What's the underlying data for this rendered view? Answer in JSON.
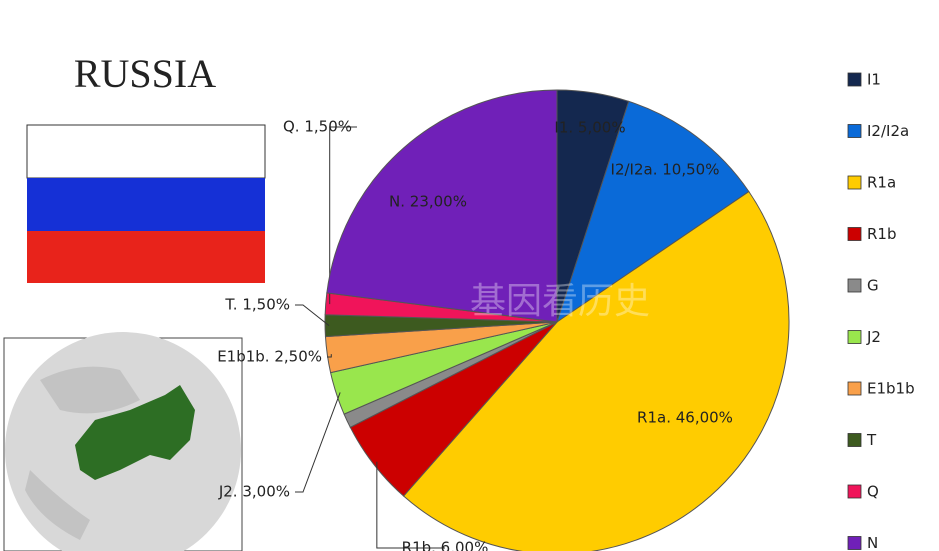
{
  "chart_data": {
    "type": "pie",
    "title": "RUSSIA",
    "watermark": "基因看历史",
    "categories": [
      "I1",
      "I2/I2a",
      "R1a",
      "R1b",
      "G",
      "J2",
      "E1b1b",
      "T",
      "Q",
      "N"
    ],
    "values": [
      5.0,
      10.5,
      46.0,
      6.0,
      1.0,
      3.0,
      2.5,
      1.5,
      1.5,
      23.0
    ],
    "value_labels": [
      "I1. 5,00%",
      "I2/I2a. 10,50%",
      "R1a. 46,00%",
      "R1b. 6,00%",
      null,
      "J2. 3,00%",
      "E1b1b. 2,50%",
      "T. 1,50%",
      "Q. 1,50%",
      "N. 23,00%"
    ],
    "colors": [
      "#14284f",
      "#0a6ad8",
      "#ffcc00",
      "#cc0000",
      "#8a8a8a",
      "#99e64d",
      "#f9a04a",
      "#3d5a1f",
      "#f0145a",
      "#7020b8"
    ],
    "legend": "right"
  }
}
